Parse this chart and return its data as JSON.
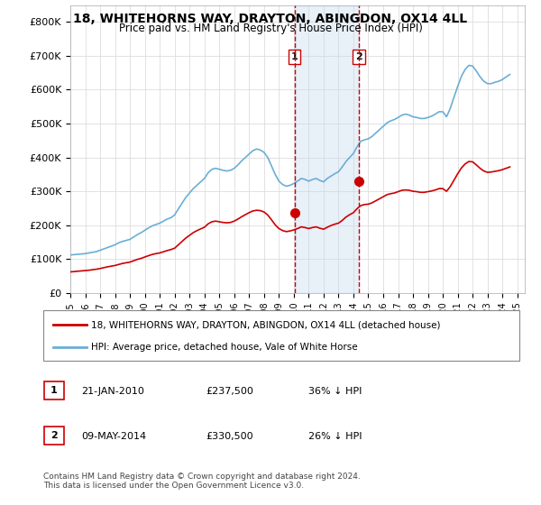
{
  "title": "18, WHITEHORNS WAY, DRAYTON, ABINGDON, OX14 4LL",
  "subtitle": "Price paid vs. HM Land Registry's House Price Index (HPI)",
  "ylabel_ticks": [
    "£0",
    "£100K",
    "£200K",
    "£300K",
    "£400K",
    "£500K",
    "£600K",
    "£700K",
    "£800K"
  ],
  "ytick_vals": [
    0,
    100000,
    200000,
    300000,
    400000,
    500000,
    600000,
    700000,
    800000
  ],
  "ylim": [
    0,
    850000
  ],
  "xlim_start": 1995.0,
  "xlim_end": 2025.5,
  "hpi_color": "#6baed6",
  "price_color": "#cc0000",
  "transaction_color": "#cc0000",
  "vline_color": "#cc0000",
  "vline_style": "--",
  "shade_color": "#c6dbef",
  "shade_alpha": 0.4,
  "transactions": [
    {
      "date_num": 2010.05,
      "price": 237500,
      "label": "1"
    },
    {
      "date_num": 2014.36,
      "price": 330500,
      "label": "2"
    }
  ],
  "legend_entries": [
    "18, WHITEHORNS WAY, DRAYTON, ABINGDON, OX14 4LL (detached house)",
    "HPI: Average price, detached house, Vale of White Horse"
  ],
  "table_rows": [
    {
      "num": "1",
      "date": "21-JAN-2010",
      "price": "£237,500",
      "change": "36% ↓ HPI"
    },
    {
      "num": "2",
      "date": "09-MAY-2014",
      "price": "£330,500",
      "change": "26% ↓ HPI"
    }
  ],
  "footer": "Contains HM Land Registry data © Crown copyright and database right 2024.\nThis data is licensed under the Open Government Licence v3.0.",
  "xtick_years": [
    1995,
    1996,
    1997,
    1998,
    1999,
    2000,
    2001,
    2002,
    2003,
    2004,
    2005,
    2006,
    2007,
    2008,
    2009,
    2010,
    2011,
    2012,
    2013,
    2014,
    2015,
    2016,
    2017,
    2018,
    2019,
    2020,
    2021,
    2022,
    2023,
    2024,
    2025
  ],
  "hpi_data": {
    "x": [
      1995.0,
      1995.25,
      1995.5,
      1995.75,
      1996.0,
      1996.25,
      1996.5,
      1996.75,
      1997.0,
      1997.25,
      1997.5,
      1997.75,
      1998.0,
      1998.25,
      1998.5,
      1998.75,
      1999.0,
      1999.25,
      1999.5,
      1999.75,
      2000.0,
      2000.25,
      2000.5,
      2000.75,
      2001.0,
      2001.25,
      2001.5,
      2001.75,
      2002.0,
      2002.25,
      2002.5,
      2002.75,
      2003.0,
      2003.25,
      2003.5,
      2003.75,
      2004.0,
      2004.25,
      2004.5,
      2004.75,
      2005.0,
      2005.25,
      2005.5,
      2005.75,
      2006.0,
      2006.25,
      2006.5,
      2006.75,
      2007.0,
      2007.25,
      2007.5,
      2007.75,
      2008.0,
      2008.25,
      2008.5,
      2008.75,
      2009.0,
      2009.25,
      2009.5,
      2009.75,
      2010.0,
      2010.25,
      2010.5,
      2010.75,
      2011.0,
      2011.25,
      2011.5,
      2011.75,
      2012.0,
      2012.25,
      2012.5,
      2012.75,
      2013.0,
      2013.25,
      2013.5,
      2013.75,
      2014.0,
      2014.25,
      2014.5,
      2014.75,
      2015.0,
      2015.25,
      2015.5,
      2015.75,
      2016.0,
      2016.25,
      2016.5,
      2016.75,
      2017.0,
      2017.25,
      2017.5,
      2017.75,
      2018.0,
      2018.25,
      2018.5,
      2018.75,
      2019.0,
      2019.25,
      2019.5,
      2019.75,
      2020.0,
      2020.25,
      2020.5,
      2020.75,
      2021.0,
      2021.25,
      2021.5,
      2021.75,
      2022.0,
      2022.25,
      2022.5,
      2022.75,
      2023.0,
      2023.25,
      2023.5,
      2023.75,
      2024.0,
      2024.25,
      2024.5
    ],
    "y": [
      112000,
      113000,
      114000,
      115000,
      116000,
      118000,
      120000,
      122000,
      126000,
      130000,
      134000,
      138000,
      142000,
      148000,
      152000,
      155000,
      158000,
      165000,
      172000,
      178000,
      185000,
      192000,
      198000,
      202000,
      206000,
      212000,
      218000,
      222000,
      230000,
      248000,
      265000,
      282000,
      295000,
      308000,
      318000,
      328000,
      338000,
      355000,
      365000,
      368000,
      365000,
      362000,
      360000,
      362000,
      368000,
      378000,
      390000,
      400000,
      410000,
      420000,
      425000,
      422000,
      415000,
      400000,
      375000,
      350000,
      330000,
      320000,
      315000,
      318000,
      323000,
      330000,
      338000,
      335000,
      330000,
      335000,
      338000,
      332000,
      328000,
      338000,
      345000,
      352000,
      358000,
      372000,
      388000,
      400000,
      412000,
      432000,
      448000,
      452000,
      455000,
      462000,
      472000,
      482000,
      492000,
      502000,
      508000,
      512000,
      518000,
      525000,
      528000,
      525000,
      520000,
      518000,
      515000,
      515000,
      518000,
      522000,
      528000,
      535000,
      535000,
      520000,
      545000,
      578000,
      610000,
      640000,
      660000,
      672000,
      670000,
      655000,
      638000,
      625000,
      618000,
      618000,
      622000,
      625000,
      630000,
      638000,
      645000
    ]
  },
  "price_data": {
    "x": [
      1995.0,
      1995.25,
      1995.5,
      1995.75,
      1996.0,
      1996.25,
      1996.5,
      1996.75,
      1997.0,
      1997.25,
      1997.5,
      1997.75,
      1998.0,
      1998.25,
      1998.5,
      1998.75,
      1999.0,
      1999.25,
      1999.5,
      1999.75,
      2000.0,
      2000.25,
      2000.5,
      2000.75,
      2001.0,
      2001.25,
      2001.5,
      2001.75,
      2002.0,
      2002.25,
      2002.5,
      2002.75,
      2003.0,
      2003.25,
      2003.5,
      2003.75,
      2004.0,
      2004.25,
      2004.5,
      2004.75,
      2005.0,
      2005.25,
      2005.5,
      2005.75,
      2006.0,
      2006.25,
      2006.5,
      2006.75,
      2007.0,
      2007.25,
      2007.5,
      2007.75,
      2008.0,
      2008.25,
      2008.5,
      2008.75,
      2009.0,
      2009.25,
      2009.5,
      2009.75,
      2010.0,
      2010.25,
      2010.5,
      2010.75,
      2011.0,
      2011.25,
      2011.5,
      2011.75,
      2012.0,
      2012.25,
      2012.5,
      2012.75,
      2013.0,
      2013.25,
      2013.5,
      2013.75,
      2014.0,
      2014.25,
      2014.5,
      2014.75,
      2015.0,
      2015.25,
      2015.5,
      2015.75,
      2016.0,
      2016.25,
      2016.5,
      2016.75,
      2017.0,
      2017.25,
      2017.5,
      2017.75,
      2018.0,
      2018.25,
      2018.5,
      2018.75,
      2019.0,
      2019.25,
      2019.5,
      2019.75,
      2020.0,
      2020.25,
      2020.5,
      2020.75,
      2021.0,
      2021.25,
      2021.5,
      2021.75,
      2022.0,
      2022.25,
      2022.5,
      2022.75,
      2023.0,
      2023.25,
      2023.5,
      2023.75,
      2024.0,
      2024.25,
      2024.5
    ],
    "y": [
      62000,
      63000,
      64000,
      65000,
      66000,
      67000,
      68500,
      70000,
      72000,
      74500,
      77000,
      79000,
      81000,
      84000,
      87000,
      89000,
      91000,
      95000,
      99000,
      102000,
      106000,
      110000,
      113500,
      116000,
      118000,
      121500,
      125000,
      128000,
      132000,
      142000,
      152000,
      162000,
      170000,
      178000,
      184000,
      189000,
      194000,
      204000,
      210000,
      212000,
      210000,
      208000,
      207000,
      208000,
      212000,
      218000,
      225000,
      231000,
      237000,
      242000,
      244000,
      243000,
      239000,
      230000,
      216000,
      201000,
      190000,
      184000,
      181000,
      183000,
      186000,
      190000,
      195000,
      193000,
      190000,
      193000,
      195000,
      191000,
      188000,
      194000,
      199000,
      203000,
      206000,
      214000,
      224000,
      231000,
      237000,
      249000,
      258000,
      261000,
      262000,
      266000,
      272000,
      278000,
      284000,
      290000,
      293000,
      295000,
      299000,
      303000,
      304000,
      303000,
      300000,
      299000,
      297000,
      297000,
      299000,
      301000,
      304000,
      308000,
      308000,
      300000,
      314000,
      333000,
      352000,
      369000,
      381000,
      388000,
      387000,
      378000,
      368000,
      360000,
      356000,
      357000,
      359000,
      361000,
      364000,
      368000,
      372000
    ]
  }
}
